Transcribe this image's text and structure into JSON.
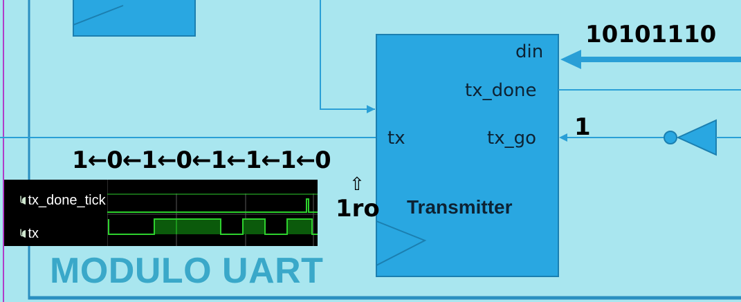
{
  "module": {
    "title": "MODULO UART"
  },
  "transmitter": {
    "title": "Transmitter",
    "ports": {
      "din": "din",
      "tx_done": "tx_done",
      "tx_go": "tx_go",
      "tx": "tx"
    }
  },
  "annotations": {
    "din_value": "10101110",
    "tx_go_value": "1",
    "bit_sequence": "1←0←1←0←1←1←1←0",
    "up_arrow": "⇧",
    "first_label": "1ro"
  },
  "waveform": {
    "signals": [
      {
        "name": "tx_done_tick",
        "icon": "signal-icon"
      },
      {
        "name": "tx",
        "icon": "signal-icon"
      }
    ],
    "colors": {
      "background": "#000000",
      "trace": "#2ed12e",
      "fill": "#0b5a0b",
      "grid": "#5a5a5a"
    }
  },
  "colors": {
    "background": "#a9e6ef",
    "block": "#29a7e1",
    "wire": "#2a9fd6",
    "module_border": "#2a8fc0",
    "left_line": "#b03cc8"
  }
}
